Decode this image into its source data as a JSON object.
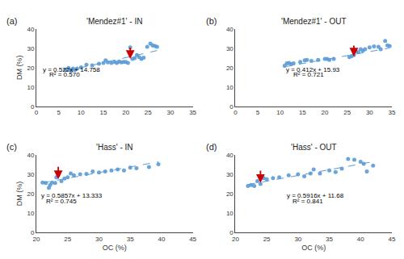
{
  "chart_data": [
    {
      "type": "scatter",
      "label": "(a)",
      "title": "'Mendez#1' - IN",
      "ylabel": "DM (%)",
      "x": [
        6.5,
        7.2,
        7.8,
        8.2,
        8.6,
        9.1,
        10.0,
        11.2,
        12.5,
        14.0,
        15.0,
        15.5,
        16.0,
        16.8,
        17.5,
        18.0,
        18.5,
        19.0,
        19.5,
        20.0,
        20.5,
        21.0,
        21.5,
        22.0,
        22.5,
        23.0,
        23.5,
        24.0,
        24.8,
        25.5,
        26.0,
        26.5,
        27.0
      ],
      "values": [
        19.0,
        19.8,
        18.5,
        19.5,
        18.8,
        19.5,
        20.2,
        21.5,
        21.2,
        22.0,
        22.5,
        23.8,
        22.8,
        22.5,
        23.0,
        22.5,
        23.2,
        22.8,
        23.0,
        23.0,
        22.5,
        30.5,
        24.5,
        25.0,
        26.5,
        25.5,
        24.5,
        25.2,
        30.8,
        32.5,
        31.5,
        31.2,
        30.8
      ],
      "color": "#5b9bd5",
      "marker": "circle",
      "trendline": {
        "x": [
          6.5,
          27.0
        ],
        "values": [
          18.151,
          28.852
        ],
        "color": "#5b9bd5",
        "line_style": "dashed"
      },
      "arrow": {
        "x": 21.0,
        "y_tail": 31.0,
        "y_tip": 24.5,
        "color": "#cc0000"
      },
      "annotations": [
        {
          "text": "y = 0.522x + 14.758",
          "x": 1.0,
          "y": 16.3
        },
        {
          "text": "R² = 0.570",
          "x": 2.5,
          "y": 13.5
        }
      ],
      "xlim": [
        0,
        35
      ],
      "ylim": [
        0,
        40
      ],
      "xticks": [
        0,
        5,
        10,
        15,
        20,
        25,
        30,
        35
      ],
      "yticks": [
        0,
        10,
        20,
        30,
        40
      ],
      "grid": false
    },
    {
      "type": "scatter",
      "label": "(b)",
      "title": "'Mendez#1' - OUT",
      "x": [
        11.0,
        11.5,
        12.0,
        12.5,
        13.0,
        14.5,
        15.5,
        16.0,
        17.0,
        18.5,
        20.0,
        20.5,
        21.0,
        22.0,
        25.5,
        26.0,
        26.5,
        27.0,
        27.5,
        28.0,
        28.5,
        29.0,
        30.0,
        31.0,
        32.0,
        32.5,
        33.5,
        34.0,
        34.5
      ],
      "values": [
        21.0,
        22.2,
        22.5,
        21.8,
        22.2,
        23.0,
        23.8,
        24.0,
        23.5,
        24.0,
        24.5,
        24.5,
        24.0,
        24.5,
        25.5,
        26.0,
        26.5,
        28.5,
        28.0,
        29.5,
        28.8,
        29.5,
        30.5,
        31.0,
        30.8,
        29.5,
        33.8,
        31.5,
        31.2
      ],
      "color": "#5b9bd5",
      "marker": "circle",
      "trendline": {
        "x": [
          11.0,
          34.5
        ],
        "values": [
          20.462,
          30.144
        ],
        "color": "#5b9bd5",
        "line_style": "dashed"
      },
      "arrow": {
        "x": 26.5,
        "y_tail": 32.0,
        "y_tip": 25.8,
        "color": "#cc0000"
      },
      "annotations": [
        {
          "text": "y = 0.412x + 15.93",
          "x": 11.0,
          "y": 16.3
        },
        {
          "text": "R² = 0.721",
          "x": 12.5,
          "y": 13.5
        }
      ],
      "xlim": [
        0,
        35
      ],
      "ylim": [
        0,
        40
      ],
      "xticks": [
        0,
        5,
        10,
        15,
        20,
        25,
        30,
        35
      ],
      "yticks": [
        0,
        10,
        20,
        30,
        40
      ],
      "grid": false
    },
    {
      "type": "scatter",
      "label": "(c)",
      "title": "'Hass' - IN",
      "ylabel": "DM (%)",
      "xlabel": "OC (%)",
      "x": [
        21.0,
        21.5,
        22.0,
        22.2,
        22.5,
        23.0,
        23.2,
        23.5,
        24.0,
        24.5,
        25.0,
        25.5,
        26.0,
        27.0,
        28.0,
        29.0,
        30.0,
        31.0,
        32.0,
        33.0,
        34.0,
        35.0,
        36.0,
        38.0,
        39.5
      ],
      "values": [
        25.8,
        25.5,
        23.0,
        24.5,
        25.8,
        25.5,
        28.5,
        29.5,
        26.5,
        27.8,
        28.5,
        30.5,
        29.5,
        30.0,
        30.2,
        31.5,
        31.0,
        31.5,
        32.0,
        32.5,
        32.0,
        33.5,
        33.2,
        33.8,
        35.2
      ],
      "color": "#5b9bd5",
      "marker": "circle",
      "trendline": {
        "x": [
          21.0,
          39.5
        ],
        "values": [
          25.6327,
          36.46815
        ],
        "color": "#5b9bd5",
        "line_style": "dashed"
      },
      "arrow": {
        "x": 23.5,
        "y_tail": 34.5,
        "y_tip": 27.5,
        "color": "#cc0000"
      },
      "annotations": [
        {
          "text": "y = 0.5857x + 13.333",
          "x": 20.5,
          "y": 16.3
        },
        {
          "text": "R² = 0.745",
          "x": 21.3,
          "y": 13.5
        }
      ],
      "xlim": [
        20,
        45
      ],
      "ylim": [
        0,
        40
      ],
      "xticks": [
        20,
        25,
        30,
        35,
        40,
        45
      ],
      "yticks": [
        0,
        10,
        20,
        30,
        40
      ],
      "grid": false
    },
    {
      "type": "scatter",
      "label": "(d)",
      "title": "'Hass' - OUT",
      "xlabel": "OC (%)",
      "x": [
        22.0,
        22.5,
        23.0,
        23.5,
        24.0,
        24.5,
        25.0,
        26.0,
        27.0,
        28.5,
        30.0,
        31.0,
        32.0,
        32.5,
        33.5,
        35.0,
        36.0,
        37.0,
        38.0,
        39.0,
        40.0,
        40.5,
        41.0,
        42.0
      ],
      "values": [
        24.0,
        24.5,
        24.0,
        26.5,
        25.0,
        28.0,
        27.5,
        28.0,
        28.5,
        29.5,
        30.0,
        29.0,
        30.5,
        32.5,
        30.5,
        32.0,
        31.2,
        33.0,
        38.0,
        37.5,
        36.5,
        35.5,
        31.5,
        34.5
      ],
      "color": "#5b9bd5",
      "marker": "circle",
      "trendline": {
        "x": [
          22.0,
          42.0
        ],
        "values": [
          24.6952,
          36.5272
        ],
        "color": "#5b9bd5",
        "line_style": "dashed"
      },
      "arrow": {
        "x": 24.0,
        "y_tail": 32.5,
        "y_tip": 25.5,
        "color": "#cc0000"
      },
      "annotations": [
        {
          "text": "y = 0.5916x + 11.68",
          "x": 28.0,
          "y": 16.3
        },
        {
          "text": "R² = 0.841",
          "x": 28.8,
          "y": 13.5
        }
      ],
      "xlim": [
        20,
        45
      ],
      "ylim": [
        0,
        40
      ],
      "xticks": [
        20,
        25,
        30,
        35,
        40,
        45
      ],
      "yticks": [
        0,
        10,
        20,
        30,
        40
      ],
      "grid": false
    }
  ]
}
